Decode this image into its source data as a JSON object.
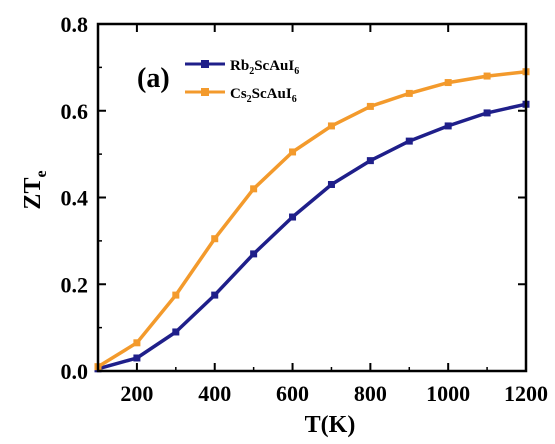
{
  "chart_data": {
    "type": "line",
    "panel_label": "(a)",
    "xlabel": "T(K)",
    "ylabel": "ZT",
    "ylabel_sub": "e",
    "xlim": [
      100,
      1200
    ],
    "ylim": [
      0,
      0.8
    ],
    "xticks": [
      200,
      400,
      600,
      800,
      1000,
      1200
    ],
    "xtick_labels": [
      "200",
      "400",
      "600",
      "800",
      "1000",
      "1200"
    ],
    "yticks": [
      0.0,
      0.2,
      0.4,
      0.6,
      0.8
    ],
    "ytick_labels": [
      "0.0",
      "0.2",
      "0.4",
      "0.6",
      "0.8"
    ],
    "grid": false,
    "legend_position": "top-left",
    "series": [
      {
        "name": "Rb2ScAuI6",
        "name_parts": [
          "Rb",
          "2",
          "ScAuI",
          "6"
        ],
        "color": "#1f1f8a",
        "marker": "square",
        "x": [
          100,
          200,
          300,
          400,
          500,
          600,
          700,
          800,
          900,
          1000,
          1100,
          1200
        ],
        "y": [
          0.005,
          0.03,
          0.09,
          0.175,
          0.27,
          0.355,
          0.43,
          0.485,
          0.53,
          0.565,
          0.595,
          0.615
        ]
      },
      {
        "name": "Cs2ScAuI6",
        "name_parts": [
          "Cs",
          "2",
          "ScAuI",
          "6"
        ],
        "color": "#f39a2c",
        "marker": "square",
        "x": [
          100,
          200,
          300,
          400,
          500,
          600,
          700,
          800,
          900,
          1000,
          1100,
          1200
        ],
        "y": [
          0.01,
          0.065,
          0.175,
          0.305,
          0.42,
          0.505,
          0.565,
          0.61,
          0.64,
          0.665,
          0.68,
          0.69
        ]
      }
    ]
  }
}
